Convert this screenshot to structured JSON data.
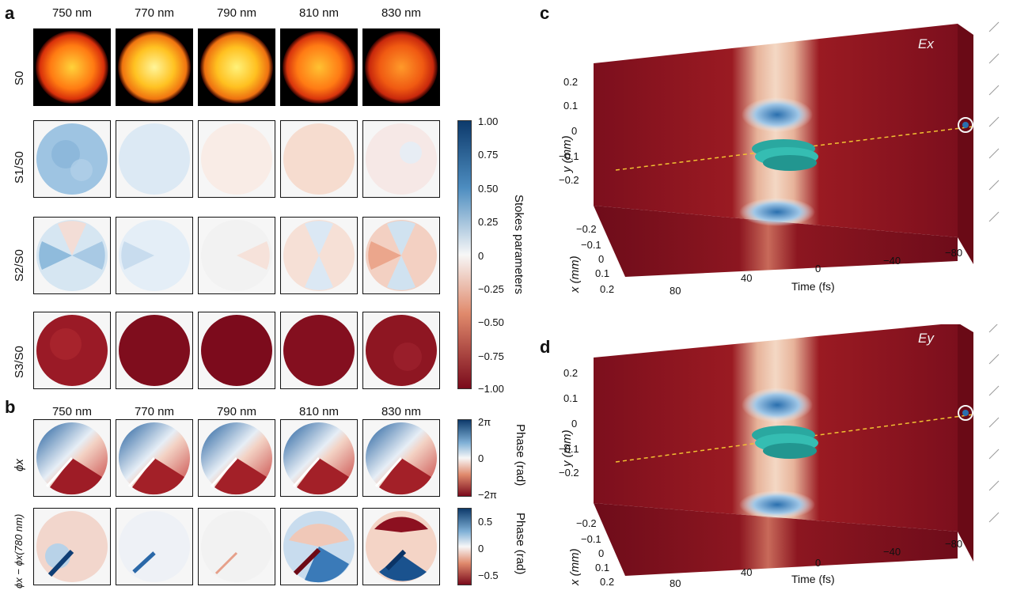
{
  "panels": {
    "a": "a",
    "b": "b",
    "c": "c",
    "d": "d"
  },
  "wavelengths": [
    "750 nm",
    "770 nm",
    "790 nm",
    "810 nm",
    "830 nm"
  ],
  "panel_a": {
    "row_labels": [
      "S0",
      "S1/S0",
      "S2/S0",
      "S3/S0"
    ],
    "colorbar": {
      "label": "Stokes parameters",
      "ticks": [
        "1.00",
        "0.75",
        "0.50",
        "0.25",
        "0",
        "−0.25",
        "−0.50",
        "−0.75",
        "−1.00"
      ],
      "color_top": "#0d3a6b",
      "color_mid": "#f7f7f7",
      "color_bottom": "#7a0a1b"
    }
  },
  "panel_b": {
    "row_labels": [
      "ϕx",
      "ϕx − ϕx(780 nm)"
    ],
    "colorbar1": {
      "label": "Phase (rad)",
      "ticks": [
        "2π",
        "0",
        "−2π"
      ]
    },
    "colorbar2": {
      "label": "Phase (rad)",
      "ticks": [
        "0.5",
        "0",
        "−0.5"
      ]
    }
  },
  "panel_c": {
    "field": "Ex",
    "y_label": "y (mm)",
    "x_label": "x (mm)",
    "time_label": "Time (fs)",
    "y_ticks": [
      "0.2",
      "0.1",
      "0",
      "−0.1",
      "−0.2"
    ],
    "x_ticks": [
      "−0.2",
      "−0.1",
      "0",
      "0.1",
      "0.2"
    ],
    "time_ticks": [
      "80",
      "40",
      "0",
      "−40",
      "−80"
    ]
  },
  "panel_d": {
    "field": "Ey",
    "y_label": "y (mm)",
    "x_label": "x (mm)",
    "time_label": "Time (fs)",
    "y_ticks": [
      "0.2",
      "0.1",
      "0",
      "−0.1",
      "−0.2"
    ],
    "x_ticks": [
      "−0.2",
      "−0.1",
      "0",
      "0.1",
      "0.2"
    ],
    "time_ticks": [
      "80",
      "40",
      "0",
      "−40",
      "−80"
    ]
  }
}
